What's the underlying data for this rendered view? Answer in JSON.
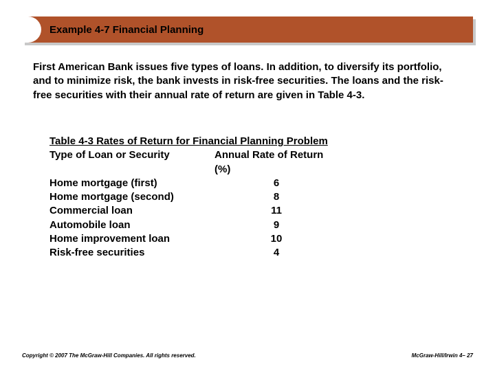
{
  "header": {
    "title": "Example 4-7 Financial Planning"
  },
  "body": {
    "paragraph": "First American Bank issues five types of loans. In addition, to diversify its portfolio, and to minimize risk, the bank invests in risk-free securities. The loans and the risk-free securities with their annual rate of return are given in Table 4-3."
  },
  "table": {
    "title": "Table 4-3 Rates of Return for Financial Planning Problem",
    "header_col1": "Type of Loan or Security",
    "header_col2": "Annual Rate of Return (%)",
    "rows": [
      {
        "label": "Home mortgage (first)",
        "value": "6"
      },
      {
        "label": "Home mortgage (second)",
        "value": "8"
      },
      {
        "label": "Commercial loan",
        "value": "11"
      },
      {
        "label": "Automobile loan",
        "value": "9"
      },
      {
        "label": "Home improvement loan",
        "value": "10"
      },
      {
        "label": "Risk-free securities",
        "value": "4"
      }
    ]
  },
  "footer": {
    "copyright": "Copyright © 2007 The McGraw-Hill Companies. All rights reserved.",
    "pageref": "McGraw-Hill/Irwin   4– 27"
  },
  "colors": {
    "title_bar": "#b0522a",
    "shadow": "#c9c9c9",
    "background": "#ffffff",
    "text": "#000000"
  }
}
